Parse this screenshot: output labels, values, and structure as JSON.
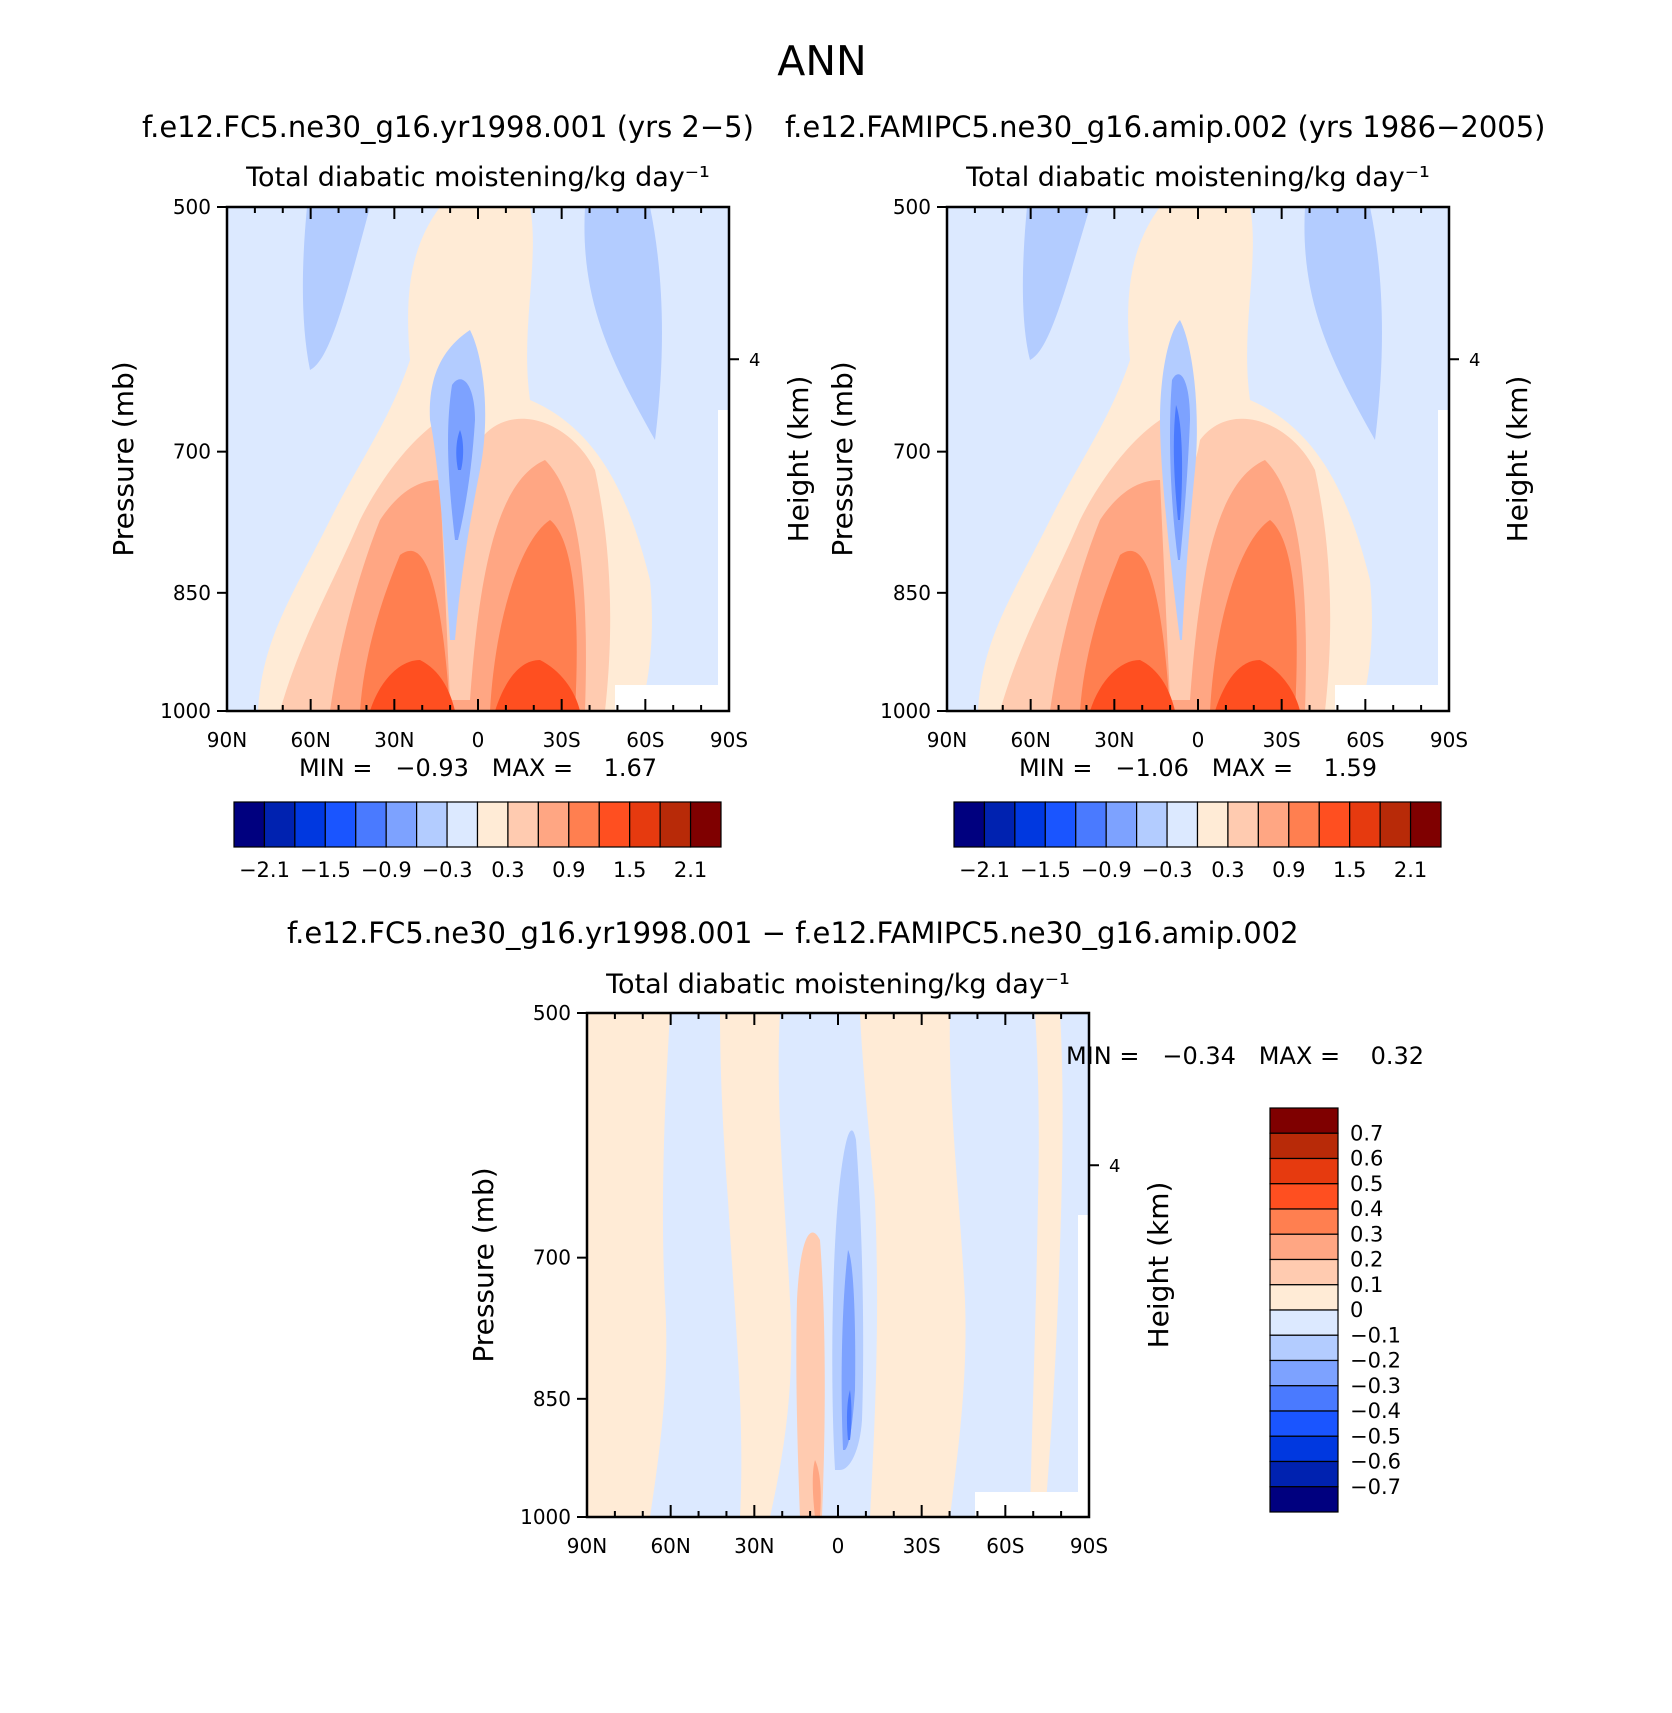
{
  "figure": {
    "season": "ANN",
    "panel_a_title": "f.e12.FC5.ne30_g16.yr1998.001 (yrs 2−5)",
    "panel_b_title": "f.e12.FAMIPC5.ne30_g16.amip.002 (yrs 1986−2005)",
    "diff_title": "f.e12.FC5.ne30_g16.yr1998.001 − f.e12.FAMIPC5.ne30_g16.amip.002"
  },
  "chart_data": [
    {
      "id": "a",
      "type": "heatmap",
      "title": "Total diabatic moistening/kg day⁻¹",
      "xlabel": "",
      "ylabel": "Pressure (mb)",
      "y2label": "Height (km)",
      "x_ticks": [
        "90N",
        "60N",
        "30N",
        "0",
        "30S",
        "60S",
        "90S"
      ],
      "y_ticks": [
        "500",
        "700",
        "850",
        "1000"
      ],
      "y2_ticks": [
        "4"
      ],
      "ylim": [
        1000,
        500
      ],
      "min_text": "MIN =   −0.93   MAX =    1.67",
      "min": -0.93,
      "max": 1.67,
      "colorbar": {
        "orientation": "horizontal",
        "labels": [
          "−2.1",
          "−1.5",
          "−0.9",
          "−0.3",
          "0.3",
          "0.9",
          "1.5",
          "2.1"
        ],
        "colors": [
          "#00007f",
          "#0022b0",
          "#0038e0",
          "#1a55ff",
          "#4a7aff",
          "#7da2ff",
          "#b3ccff",
          "#dce9ff",
          "#ffebd6",
          "#ffcbb0",
          "#ffa683",
          "#ff7f50",
          "#ff4f20",
          "#e63a0f",
          "#b82a08",
          "#7f0000"
        ]
      }
    },
    {
      "id": "b",
      "type": "heatmap",
      "title": "Total diabatic moistening/kg day⁻¹",
      "xlabel": "",
      "ylabel": "Pressure (mb)",
      "y2label": "Height (km)",
      "x_ticks": [
        "90N",
        "60N",
        "30N",
        "0",
        "30S",
        "60S",
        "90S"
      ],
      "y_ticks": [
        "500",
        "700",
        "850",
        "1000"
      ],
      "y2_ticks": [
        "4"
      ],
      "ylim": [
        1000,
        500
      ],
      "min_text": "MIN =   −1.06   MAX =    1.59",
      "min": -1.06,
      "max": 1.59,
      "colorbar": {
        "orientation": "horizontal",
        "labels": [
          "−2.1",
          "−1.5",
          "−0.9",
          "−0.3",
          "0.3",
          "0.9",
          "1.5",
          "2.1"
        ],
        "colors": [
          "#00007f",
          "#0022b0",
          "#0038e0",
          "#1a55ff",
          "#4a7aff",
          "#7da2ff",
          "#b3ccff",
          "#dce9ff",
          "#ffebd6",
          "#ffcbb0",
          "#ffa683",
          "#ff7f50",
          "#ff4f20",
          "#e63a0f",
          "#b82a08",
          "#7f0000"
        ]
      }
    },
    {
      "id": "diff",
      "type": "heatmap",
      "title": "Total diabatic moistening/kg day⁻¹",
      "xlabel": "",
      "ylabel": "Pressure (mb)",
      "y2label": "Height (km)",
      "x_ticks": [
        "90N",
        "60N",
        "30N",
        "0",
        "30S",
        "60S",
        "90S"
      ],
      "y_ticks": [
        "500",
        "700",
        "850",
        "1000"
      ],
      "y2_ticks": [
        "4"
      ],
      "ylim": [
        1000,
        500
      ],
      "min_text": "MIN =   −0.34   MAX =    0.32",
      "min": -0.34,
      "max": 0.32,
      "colorbar": {
        "orientation": "vertical",
        "labels": [
          "0.7",
          "0.6",
          "0.5",
          "0.4",
          "0.3",
          "0.2",
          "0.1",
          "0",
          "−0.1",
          "−0.2",
          "−0.3",
          "−0.4",
          "−0.5",
          "−0.6",
          "−0.7"
        ],
        "colors": [
          "#7f0000",
          "#b82a08",
          "#e63a0f",
          "#ff4f20",
          "#ff7f50",
          "#ffa683",
          "#ffcbb0",
          "#ffebd6",
          "#dce9ff",
          "#b3ccff",
          "#7da2ff",
          "#4a7aff",
          "#1a55ff",
          "#0038e0",
          "#0022b0",
          "#00007f"
        ]
      }
    }
  ]
}
